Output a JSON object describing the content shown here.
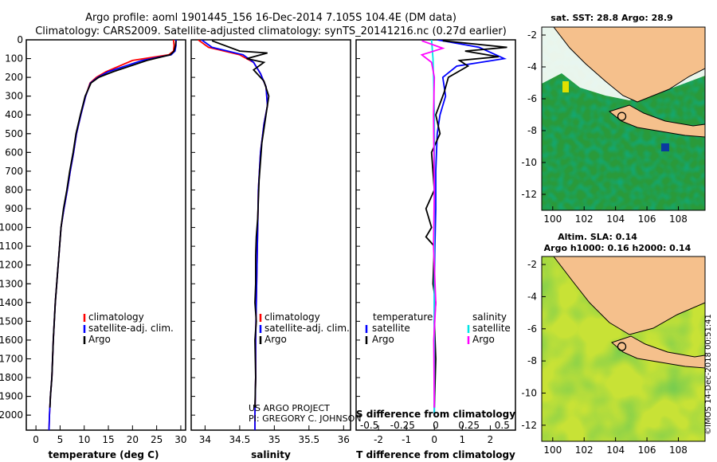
{
  "header": {
    "line1": "Argo profile: aoml 1901445_156 16-Dec-2014 7.105S 104.4E (DM data)",
    "line2": "Climatology: CARS2009. Satellite-adjusted climatology: synTS_20141216.nc (0.27d earlier)"
  },
  "colors": {
    "climatology": "#ff0000",
    "satellite": "#0000ff",
    "argo": "#000000",
    "satellite_salinity": "#00e5e5",
    "argo_salinity": "#ff00ff",
    "land": "#f5c08c"
  },
  "credits": {
    "project": "US ARGO PROJECT",
    "pi": "PI: GREGORY C. JOHNSON",
    "imos": "©IMOS 14-Dec-2018 00:51:41"
  },
  "chart_data": [
    {
      "type": "line",
      "xlabel": "temperature (deg C)",
      "ylabel": "",
      "xlim": [
        -2,
        31
      ],
      "ylim": [
        2080,
        0
      ],
      "xticks": [
        0,
        5,
        10,
        15,
        20,
        25,
        30
      ],
      "yticks": [
        0,
        100,
        200,
        300,
        400,
        500,
        600,
        700,
        800,
        900,
        1000,
        1100,
        1200,
        1300,
        1400,
        1500,
        1600,
        1700,
        1800,
        1900,
        2000
      ],
      "legend": [
        "climatology",
        "satellite-adj. clim.",
        "Argo"
      ],
      "series": [
        {
          "name": "climatology",
          "x": [
            28.5,
            28.6,
            28.5,
            27.5,
            20,
            14.5,
            12.5,
            11.2,
            10.3,
            9.3,
            8.4,
            7.8,
            7.1,
            6.5,
            5.8,
            5.2,
            4.9,
            4.6,
            4.3,
            4.0,
            3.6,
            3.3,
            3.0,
            2.8,
            2.7
          ],
          "y": [
            0,
            30,
            60,
            80,
            110,
            170,
            200,
            230,
            300,
            400,
            500,
            600,
            700,
            800,
            900,
            1000,
            1100,
            1200,
            1300,
            1400,
            1600,
            1800,
            1900,
            2000,
            2080
          ]
        },
        {
          "name": "satellite-adj. clim.",
          "x": [
            29.0,
            29.0,
            28.8,
            28.0,
            22,
            15,
            12.8,
            11.3,
            10.3,
            9.3,
            8.4,
            7.8,
            7.1,
            6.5,
            5.8,
            5.2,
            4.9,
            4.6,
            4.3,
            4.0,
            3.6,
            3.3,
            3.0,
            2.8,
            2.7
          ],
          "y": [
            0,
            30,
            60,
            80,
            110,
            170,
            200,
            230,
            300,
            400,
            500,
            600,
            700,
            800,
            900,
            1000,
            1100,
            1200,
            1300,
            1400,
            1600,
            1800,
            1900,
            2000,
            2080
          ]
        },
        {
          "name": "Argo",
          "x": [
            29.0,
            28.9,
            28.6,
            27.8,
            23,
            16,
            13.0,
            11.4,
            10.2,
            9.2,
            8.3,
            7.7,
            7.0,
            6.4,
            5.7,
            5.2,
            4.9,
            4.6,
            4.3,
            4.0,
            3.6,
            3.3,
            3.0,
            2.9
          ],
          "y": [
            5,
            30,
            60,
            80,
            110,
            170,
            200,
            230,
            300,
            400,
            500,
            600,
            700,
            800,
            900,
            1000,
            1100,
            1200,
            1300,
            1400,
            1600,
            1800,
            1900,
            1960
          ]
        }
      ]
    },
    {
      "type": "line",
      "xlabel": "salinity",
      "ylabel": "",
      "xlim": [
        33.8,
        36.1
      ],
      "ylim": [
        2080,
        0
      ],
      "xticks": [
        34,
        34.5,
        35,
        35.5,
        36
      ],
      "legend": [
        "climatology",
        "satellite-adj. clim.",
        "Argo"
      ],
      "series": [
        {
          "name": "climatology",
          "x": [
            33.9,
            34.05,
            34.5,
            34.7,
            34.8,
            34.88,
            34.9,
            34.85,
            34.8,
            34.77,
            34.76,
            34.75,
            34.74,
            34.73,
            34.73,
            34.72,
            34.72
          ],
          "y": [
            0,
            40,
            80,
            120,
            180,
            250,
            350,
            450,
            600,
            800,
            1000,
            1200,
            1400,
            1600,
            1800,
            2000,
            2080
          ]
        },
        {
          "name": "satellite-adj. clim.",
          "x": [
            33.95,
            34.1,
            34.55,
            34.7,
            34.8,
            34.88,
            34.9,
            34.85,
            34.8,
            34.77,
            34.76,
            34.75,
            34.74,
            34.73,
            34.73,
            34.72,
            34.72
          ],
          "y": [
            0,
            40,
            80,
            120,
            180,
            250,
            350,
            450,
            600,
            800,
            1000,
            1200,
            1400,
            1600,
            1800,
            2000,
            2080
          ]
        },
        {
          "name": "Argo",
          "x": [
            34.1,
            34.5,
            34.9,
            34.6,
            34.85,
            34.7,
            34.85,
            34.92,
            34.88,
            34.82,
            34.78,
            34.76,
            34.74,
            34.73,
            34.73,
            34.72,
            34.74,
            34.72,
            34.73,
            34.72
          ],
          "y": [
            5,
            60,
            70,
            100,
            120,
            160,
            220,
            300,
            400,
            550,
            750,
            950,
            1050,
            1150,
            1300,
            1400,
            1500,
            1600,
            1800,
            1960
          ]
        }
      ]
    },
    {
      "type": "line",
      "xlabel": "T difference from climatology",
      "xlabel_top": "S difference from climatology",
      "ylabel": "",
      "xlim": [
        -2.8,
        2.9
      ],
      "ylim": [
        2080,
        0
      ],
      "xticks": [
        -2,
        -1,
        0,
        1,
        2
      ],
      "xticks_top": [
        -0.5,
        -0.25,
        0,
        0.25,
        0.5
      ],
      "legend_temperature_title": "temperature",
      "legend_salinity_title": "salinity",
      "legend": [
        "satellite",
        "Argo"
      ],
      "series": [
        {
          "name": "satellite",
          "x": [
            0.1,
            1.6,
            2.5,
            0.8,
            0.3,
            0.4,
            0.2,
            0.1,
            0.05,
            0.05,
            0.02,
            0.0,
            0.0,
            0.0,
            0.0,
            0.0
          ],
          "y": [
            0,
            40,
            100,
            140,
            200,
            300,
            400,
            500,
            700,
            900,
            1100,
            1300,
            1500,
            1700,
            1900,
            2000
          ]
        },
        {
          "name": "Argo",
          "x": [
            0.3,
            2.6,
            1.1,
            2.3,
            0.9,
            1.2,
            0.5,
            0.35,
            0.05,
            0.2,
            -0.1,
            0.0,
            -0.3,
            -0.1,
            -0.3,
            0.0,
            -0.05,
            0.05,
            0.0,
            0.05,
            0.0
          ],
          "y": [
            5,
            40,
            60,
            90,
            110,
            140,
            200,
            280,
            400,
            500,
            600,
            800,
            900,
            1000,
            1050,
            1100,
            1300,
            1400,
            1500,
            1700,
            1960
          ]
        },
        {
          "name": "satellite",
          "x": [
            -0.1,
            -0.05,
            -0.03,
            0.0,
            0.0,
            0.0,
            0.0,
            0.0,
            0.0,
            0.0
          ],
          "y": [
            0,
            100,
            200,
            400,
            800,
            1100,
            1400,
            1600,
            1800,
            2000
          ]
        },
        {
          "name": "Argo",
          "x": [
            -0.45,
            0.3,
            -0.45,
            -0.1,
            0.0,
            -0.03,
            0.0,
            -0.03,
            0.05,
            -0.02,
            0.0
          ],
          "y": [
            5,
            45,
            80,
            120,
            200,
            400,
            800,
            1100,
            1400,
            1600,
            1960
          ]
        }
      ]
    },
    {
      "type": "heatmap",
      "title": "sat. SST: 28.8 Argo: 28.9",
      "xlim": [
        99.3,
        109.7
      ],
      "ylim": [
        -13.0,
        -1.5
      ],
      "xticks": [
        100,
        102,
        104,
        106,
        108
      ],
      "yticks": [
        -2,
        -4,
        -6,
        -8,
        -10,
        -12
      ],
      "marker": {
        "lon": 104.4,
        "lat": -7.105
      }
    },
    {
      "type": "heatmap",
      "title": "Altim. SLA: 0.14",
      "subtitle": "Argo h1000: 0.16 h2000: 0.14",
      "xlim": [
        99.3,
        109.7
      ],
      "ylim": [
        -13.0,
        -1.5
      ],
      "xticks": [
        100,
        102,
        104,
        106,
        108
      ],
      "yticks": [
        -2,
        -4,
        -6,
        -8,
        -10,
        -12
      ],
      "marker": {
        "lon": 104.4,
        "lat": -7.105
      }
    }
  ]
}
